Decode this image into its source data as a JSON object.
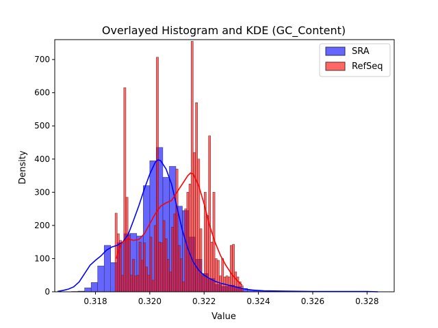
{
  "chart_data": {
    "type": "bar",
    "title": "Overlayed Histogram and KDE (GC_Content)",
    "xlabel": "Value",
    "ylabel": "Density",
    "xlim": [
      0.3165,
      0.329
    ],
    "ylim": [
      0,
      760
    ],
    "xticks": [
      0.318,
      0.32,
      0.322,
      0.324,
      0.326,
      0.328
    ],
    "xtick_labels": [
      "0.318",
      "0.320",
      "0.322",
      "0.324",
      "0.326",
      "0.328"
    ],
    "yticks": [
      0,
      100,
      200,
      300,
      400,
      500,
      600,
      700
    ],
    "ytick_labels": [
      "0",
      "100",
      "200",
      "300",
      "400",
      "500",
      "600",
      "700"
    ],
    "grid": false,
    "legend_position": "upper right",
    "series": [
      {
        "name": "SRA",
        "color": "#0000ff",
        "bar_width": 0.00024,
        "bars": [
          [
            0.31676,
            0.4
          ],
          [
            0.317,
            0.5
          ],
          [
            0.31724,
            1
          ],
          [
            0.31748,
            2
          ],
          [
            0.31772,
            12
          ],
          [
            0.31796,
            28
          ],
          [
            0.3182,
            78
          ],
          [
            0.31844,
            140
          ],
          [
            0.31868,
            88
          ],
          [
            0.31892,
            148
          ],
          [
            0.31916,
            175
          ],
          [
            0.3194,
            176
          ],
          [
            0.31964,
            168
          ],
          [
            0.31988,
            320
          ],
          [
            0.32012,
            395
          ],
          [
            0.32036,
            435
          ],
          [
            0.3206,
            345
          ],
          [
            0.32084,
            378
          ],
          [
            0.32108,
            258
          ],
          [
            0.32132,
            245
          ],
          [
            0.32156,
            165
          ],
          [
            0.3218,
            98
          ],
          [
            0.32204,
            55
          ],
          [
            0.32228,
            40
          ],
          [
            0.32252,
            22
          ],
          [
            0.32276,
            16
          ],
          [
            0.323,
            20
          ],
          [
            0.32324,
            15
          ],
          [
            0.32348,
            10
          ],
          [
            0.32372,
            6
          ],
          [
            0.32396,
            4
          ],
          [
            0.3242,
            3
          ],
          [
            0.32444,
            2
          ],
          [
            0.32468,
            2
          ],
          [
            0.32492,
            1
          ],
          [
            0.32516,
            1
          ],
          [
            0.3254,
            1
          ],
          [
            0.32564,
            1
          ],
          [
            0.32588,
            1
          ],
          [
            0.32612,
            1
          ],
          [
            0.32636,
            0.5
          ],
          [
            0.3266,
            0.5
          ],
          [
            0.32684,
            0.5
          ],
          [
            0.32708,
            0.5
          ],
          [
            0.32732,
            0.5
          ],
          [
            0.32756,
            0.5
          ],
          [
            0.3278,
            0.5
          ],
          [
            0.32804,
            0.5
          ],
          [
            0.32828,
            0.5
          ]
        ],
        "kde": [
          [
            0.3166,
            1
          ],
          [
            0.3168,
            4
          ],
          [
            0.317,
            8
          ],
          [
            0.3172,
            15
          ],
          [
            0.3174,
            30
          ],
          [
            0.3176,
            55
          ],
          [
            0.3178,
            80
          ],
          [
            0.318,
            95
          ],
          [
            0.3182,
            108
          ],
          [
            0.3184,
            125
          ],
          [
            0.3186,
            135
          ],
          [
            0.3188,
            140
          ],
          [
            0.319,
            150
          ],
          [
            0.3192,
            172
          ],
          [
            0.3194,
            215
          ],
          [
            0.3196,
            260
          ],
          [
            0.3198,
            310
          ],
          [
            0.32,
            355
          ],
          [
            0.3202,
            390
          ],
          [
            0.3203,
            398
          ],
          [
            0.3204,
            395
          ],
          [
            0.3206,
            370
          ],
          [
            0.3208,
            325
          ],
          [
            0.321,
            255
          ],
          [
            0.3212,
            185
          ],
          [
            0.3214,
            130
          ],
          [
            0.3216,
            90
          ],
          [
            0.3218,
            65
          ],
          [
            0.322,
            50
          ],
          [
            0.3222,
            40
          ],
          [
            0.3224,
            32
          ],
          [
            0.3226,
            26
          ],
          [
            0.3228,
            22
          ],
          [
            0.323,
            18
          ],
          [
            0.3232,
            14
          ],
          [
            0.3234,
            10
          ],
          [
            0.3236,
            7
          ],
          [
            0.3238,
            5
          ],
          [
            0.3242,
            3
          ],
          [
            0.325,
            2
          ],
          [
            0.326,
            1
          ],
          [
            0.327,
            1
          ],
          [
            0.328,
            1
          ],
          [
            0.3284,
            0
          ]
        ]
      },
      {
        "name": "RefSeq",
        "color": "#ff0000",
        "bar_width": 8e-05,
        "bars": [
          [
            0.31876,
            237
          ],
          [
            0.31884,
            175
          ],
          [
            0.31892,
            155
          ],
          [
            0.319,
            50
          ],
          [
            0.31908,
            615
          ],
          [
            0.31916,
            285
          ],
          [
            0.31924,
            170
          ],
          [
            0.31932,
            50
          ],
          [
            0.3194,
            98
          ],
          [
            0.31948,
            48
          ],
          [
            0.31956,
            50
          ],
          [
            0.31964,
            150
          ],
          [
            0.31972,
            95
          ],
          [
            0.3198,
            148
          ],
          [
            0.31988,
            75
          ],
          [
            0.31996,
            50
          ],
          [
            0.32004,
            165
          ],
          [
            0.32012,
            35
          ],
          [
            0.3202,
            200
          ],
          [
            0.32028,
            707
          ],
          [
            0.32036,
            150
          ],
          [
            0.32044,
            148
          ],
          [
            0.32052,
            215
          ],
          [
            0.3206,
            160
          ],
          [
            0.32068,
            98
          ],
          [
            0.32076,
            60
          ],
          [
            0.32084,
            195
          ],
          [
            0.32092,
            235
          ],
          [
            0.321,
            370
          ],
          [
            0.32108,
            140
          ],
          [
            0.32116,
            100
          ],
          [
            0.32124,
            30
          ],
          [
            0.32132,
            250
          ],
          [
            0.3214,
            300
          ],
          [
            0.32148,
            325
          ],
          [
            0.32156,
            755
          ],
          [
            0.32164,
            420
          ],
          [
            0.32172,
            570
          ],
          [
            0.3218,
            400
          ],
          [
            0.32188,
            190
          ],
          [
            0.32196,
            48
          ],
          [
            0.32204,
            300
          ],
          [
            0.32212,
            230
          ],
          [
            0.3222,
            470
          ],
          [
            0.32228,
            150
          ],
          [
            0.32236,
            300
          ],
          [
            0.32244,
            100
          ],
          [
            0.32252,
            95
          ],
          [
            0.3226,
            48
          ],
          [
            0.32268,
            100
          ],
          [
            0.32276,
            45
          ],
          [
            0.32284,
            48
          ],
          [
            0.32292,
            45
          ],
          [
            0.323,
            140
          ],
          [
            0.32308,
            143
          ],
          [
            0.32316,
            60
          ],
          [
            0.32324,
            45
          ],
          [
            0.32332,
            30
          ],
          [
            0.3234,
            18
          ]
        ],
        "kde": [
          [
            0.31876,
            100
          ],
          [
            0.3189,
            135
          ],
          [
            0.319,
            150
          ],
          [
            0.3192,
            160
          ],
          [
            0.3194,
            155
          ],
          [
            0.3196,
            158
          ],
          [
            0.3198,
            175
          ],
          [
            0.32,
            205
          ],
          [
            0.3202,
            235
          ],
          [
            0.3204,
            258
          ],
          [
            0.3206,
            268
          ],
          [
            0.3208,
            275
          ],
          [
            0.321,
            300
          ],
          [
            0.3212,
            325
          ],
          [
            0.3214,
            350
          ],
          [
            0.3215,
            358
          ],
          [
            0.3216,
            355
          ],
          [
            0.3218,
            320
          ],
          [
            0.322,
            265
          ],
          [
            0.3222,
            200
          ],
          [
            0.3224,
            150
          ],
          [
            0.3226,
            110
          ],
          [
            0.3228,
            80
          ],
          [
            0.323,
            55
          ],
          [
            0.3232,
            35
          ],
          [
            0.3234,
            20
          ]
        ]
      }
    ]
  }
}
